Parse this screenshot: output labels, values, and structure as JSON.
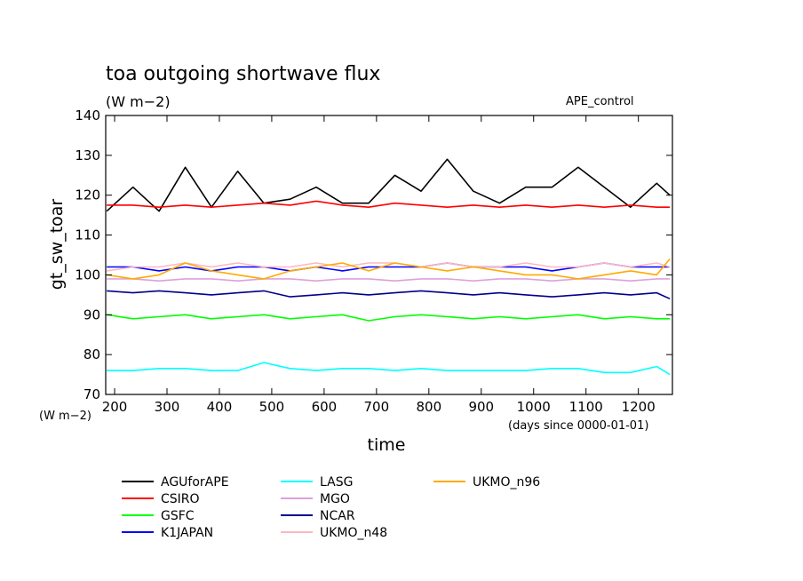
{
  "chart_data": {
    "type": "line",
    "title": "toa outgoing shortwave flux",
    "subtitle": "(W m−2)",
    "annotation": "APE_control",
    "xlabel": "time",
    "x_units_note": "(days since 0000-01-01)",
    "ylabel": "gt_sw_toar",
    "y_units_note": "(W m−2)",
    "xlim": [
      183,
      1265
    ],
    "ylim": [
      70,
      140
    ],
    "x_ticks": [
      200,
      300,
      400,
      500,
      600,
      700,
      800,
      900,
      1000,
      1100,
      1200
    ],
    "y_ticks": [
      70,
      80,
      90,
      100,
      110,
      120,
      130,
      140
    ],
    "grid": false,
    "legend_position": "bottom",
    "series": [
      {
        "name": "AGUforAPE",
        "color": "#000000",
        "x": [
          185,
          235,
          285,
          335,
          385,
          435,
          485,
          535,
          585,
          635,
          685,
          735,
          785,
          835,
          885,
          935,
          985,
          1035,
          1085,
          1135,
          1185,
          1235,
          1260
        ],
        "values": [
          116,
          122,
          116,
          127,
          117,
          126,
          118,
          119,
          122,
          118,
          118,
          125,
          121,
          129,
          121,
          118,
          122,
          122,
          127,
          122,
          117,
          123,
          120
        ]
      },
      {
        "name": "CSIRO",
        "color": "#ff0000",
        "x": [
          185,
          235,
          285,
          335,
          385,
          435,
          485,
          535,
          585,
          635,
          685,
          735,
          785,
          835,
          885,
          935,
          985,
          1035,
          1085,
          1135,
          1185,
          1235,
          1260
        ],
        "values": [
          117.5,
          117.5,
          117,
          117.5,
          117,
          117.5,
          118,
          117.5,
          118.5,
          117.5,
          117,
          118,
          117.5,
          117,
          117.5,
          117,
          117.5,
          117,
          117.5,
          117,
          117.5,
          117,
          117
        ]
      },
      {
        "name": "GSFC",
        "color": "#00ff00",
        "x": [
          185,
          235,
          285,
          335,
          385,
          435,
          485,
          535,
          585,
          635,
          685,
          735,
          785,
          835,
          885,
          935,
          985,
          1035,
          1085,
          1135,
          1185,
          1235,
          1260
        ],
        "values": [
          90,
          89,
          89.5,
          90,
          89,
          89.5,
          90,
          89,
          89.5,
          90,
          88.5,
          89.5,
          90,
          89.5,
          89,
          89.5,
          89,
          89.5,
          90,
          89,
          89.5,
          89,
          89
        ]
      },
      {
        "name": "K1JAPAN",
        "color": "#0000ff",
        "x": [
          185,
          235,
          285,
          335,
          385,
          435,
          485,
          535,
          585,
          635,
          685,
          735,
          785,
          835,
          885,
          935,
          985,
          1035,
          1085,
          1135,
          1185,
          1235,
          1260
        ],
        "values": [
          102,
          102,
          101,
          102,
          101,
          102,
          102,
          101,
          102,
          101,
          102,
          102,
          102,
          103,
          102,
          102,
          102,
          101,
          102,
          103,
          102,
          102,
          102
        ]
      },
      {
        "name": "LASG",
        "color": "#00ffff",
        "x": [
          185,
          235,
          285,
          335,
          385,
          435,
          485,
          535,
          585,
          635,
          685,
          735,
          785,
          835,
          885,
          935,
          985,
          1035,
          1085,
          1135,
          1185,
          1235,
          1260
        ],
        "values": [
          76,
          76,
          76.5,
          76.5,
          76,
          76,
          78,
          76.5,
          76,
          76.5,
          76.5,
          76,
          76.5,
          76,
          76,
          76,
          76,
          76.5,
          76.5,
          75.5,
          75.5,
          77,
          75
        ]
      },
      {
        "name": "MGO",
        "color": "#dda0dd",
        "x": [
          185,
          235,
          285,
          335,
          385,
          435,
          485,
          535,
          585,
          635,
          685,
          735,
          785,
          835,
          885,
          935,
          985,
          1035,
          1085,
          1135,
          1185,
          1235,
          1260
        ],
        "values": [
          99,
          99,
          98.5,
          99,
          99,
          98.5,
          99,
          99,
          98.5,
          99,
          99,
          98.5,
          99,
          99,
          98.5,
          99,
          99,
          98.5,
          99,
          99,
          98.5,
          99,
          99
        ]
      },
      {
        "name": "NCAR",
        "color": "#00008b",
        "x": [
          185,
          235,
          285,
          335,
          385,
          435,
          485,
          535,
          585,
          635,
          685,
          735,
          785,
          835,
          885,
          935,
          985,
          1035,
          1085,
          1135,
          1185,
          1235,
          1260
        ],
        "values": [
          96,
          95.5,
          96,
          95.5,
          95,
          95.5,
          96,
          94.5,
          95,
          95.5,
          95,
          95.5,
          96,
          95.5,
          95,
          95.5,
          95,
          94.5,
          95,
          95.5,
          95,
          95.5,
          94
        ]
      },
      {
        "name": "UKMO_n48",
        "color": "#ffb6c1",
        "x": [
          185,
          235,
          285,
          335,
          385,
          435,
          485,
          535,
          585,
          635,
          685,
          735,
          785,
          835,
          885,
          935,
          985,
          1035,
          1085,
          1135,
          1185,
          1235,
          1260
        ],
        "values": [
          101,
          102,
          102,
          103,
          102,
          103,
          102,
          102,
          103,
          102,
          103,
          103,
          102,
          103,
          102,
          102,
          103,
          102,
          102,
          103,
          102,
          103,
          102
        ]
      },
      {
        "name": "UKMO_n96",
        "color": "#ffaa00",
        "x": [
          185,
          235,
          285,
          335,
          385,
          435,
          485,
          535,
          585,
          635,
          685,
          735,
          785,
          835,
          885,
          935,
          985,
          1035,
          1085,
          1135,
          1185,
          1235,
          1260
        ],
        "values": [
          100,
          99,
          100,
          103,
          101,
          100,
          99,
          101,
          102,
          103,
          101,
          103,
          102,
          101,
          102,
          101,
          100,
          100,
          99,
          100,
          101,
          100,
          104
        ]
      }
    ]
  }
}
